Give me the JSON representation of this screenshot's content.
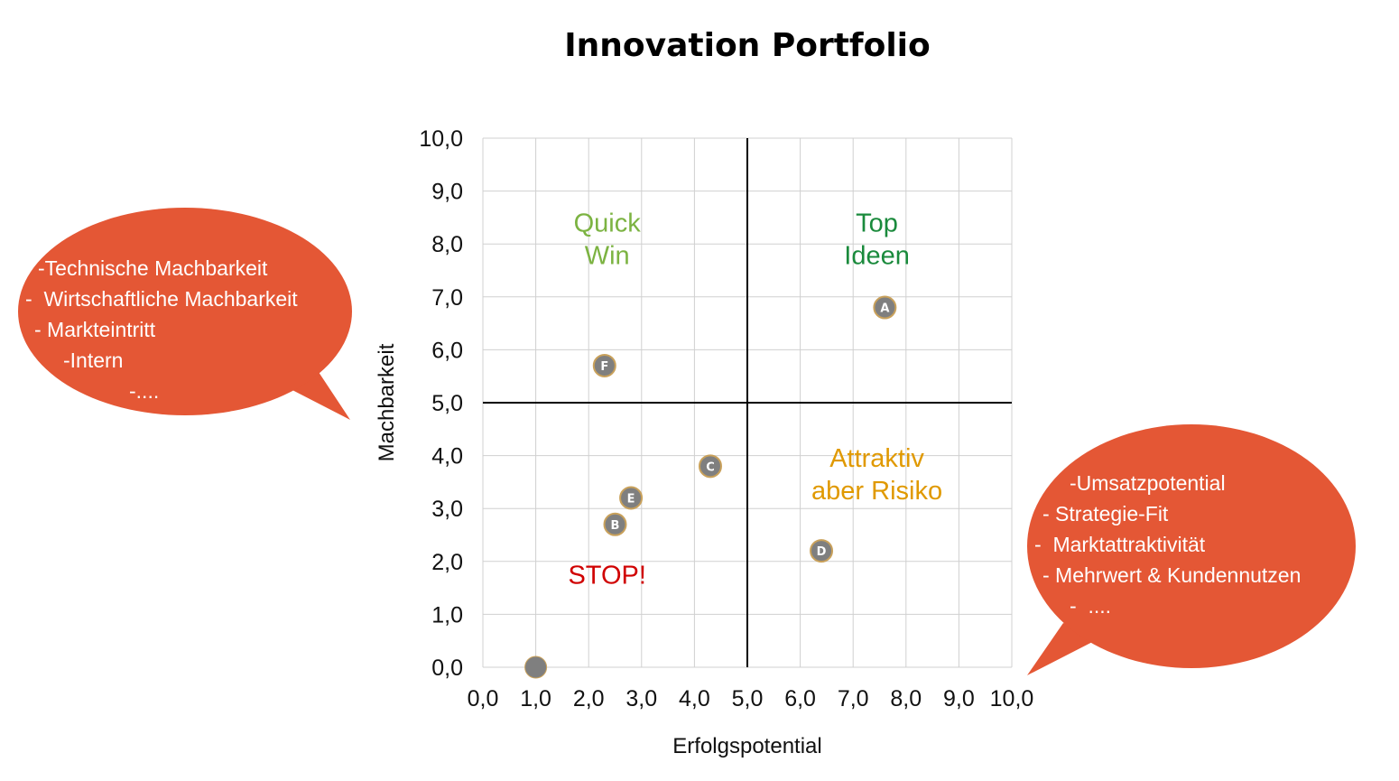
{
  "chart_data": {
    "type": "scatter",
    "title": "Innovation Portfolio",
    "xlabel": "Erfolgspotential",
    "ylabel": "Machbarkeit",
    "xlim": [
      0,
      10
    ],
    "ylim": [
      0,
      10
    ],
    "x_ticks": [
      "0,0",
      "1,0",
      "2,0",
      "3,0",
      "4,0",
      "5,0",
      "6,0",
      "7,0",
      "8,0",
      "9,0",
      "10,0"
    ],
    "y_ticks": [
      "0,0",
      "1,0",
      "2,0",
      "3,0",
      "4,0",
      "5,0",
      "6,0",
      "7,0",
      "8,0",
      "9,0",
      "10,0"
    ],
    "grid": true,
    "divider": {
      "x": 5,
      "y": 5
    },
    "points": [
      {
        "label": "A",
        "x": 7.6,
        "y": 6.8
      },
      {
        "label": "B",
        "x": 2.5,
        "y": 2.7
      },
      {
        "label": "C",
        "x": 4.3,
        "y": 3.8
      },
      {
        "label": "D",
        "x": 6.4,
        "y": 2.2
      },
      {
        "label": "E",
        "x": 2.8,
        "y": 3.2
      },
      {
        "label": "F",
        "x": 2.3,
        "y": 5.7
      },
      {
        "label": "",
        "x": 1.0,
        "y": 0.0
      }
    ],
    "quadrant_labels": [
      {
        "lines": [
          "Quick",
          "Win"
        ],
        "color": "#7cb342",
        "position": "top-left"
      },
      {
        "lines": [
          "Top",
          "Ideen"
        ],
        "color": "#1a8a3c",
        "position": "top-right"
      },
      {
        "lines": [
          "Attraktiv",
          "aber Risiko"
        ],
        "color": "#e09900",
        "position": "bottom-right"
      },
      {
        "lines": [
          "STOP!"
        ],
        "color": "#d00000",
        "position": "bottom-left"
      }
    ]
  },
  "callouts": {
    "left": {
      "lines": [
        "-Technische Machbarkeit",
        "-  Wirtschaftliche Machbarkeit",
        "- Markteintritt",
        "-Intern",
        "-...."
      ]
    },
    "right": {
      "lines": [
        "-Umsatzpotential",
        "- Strategie-Fit",
        "-  Marktattraktivität",
        "- Mehrwert & Kundennutzen",
        "-  ...."
      ]
    }
  },
  "colors": {
    "bubble": "#e45735",
    "point_fill": "#7f7f7f",
    "point_stroke": "#c9a15b",
    "grid": "#d0d0d0",
    "divider": "#000000"
  }
}
